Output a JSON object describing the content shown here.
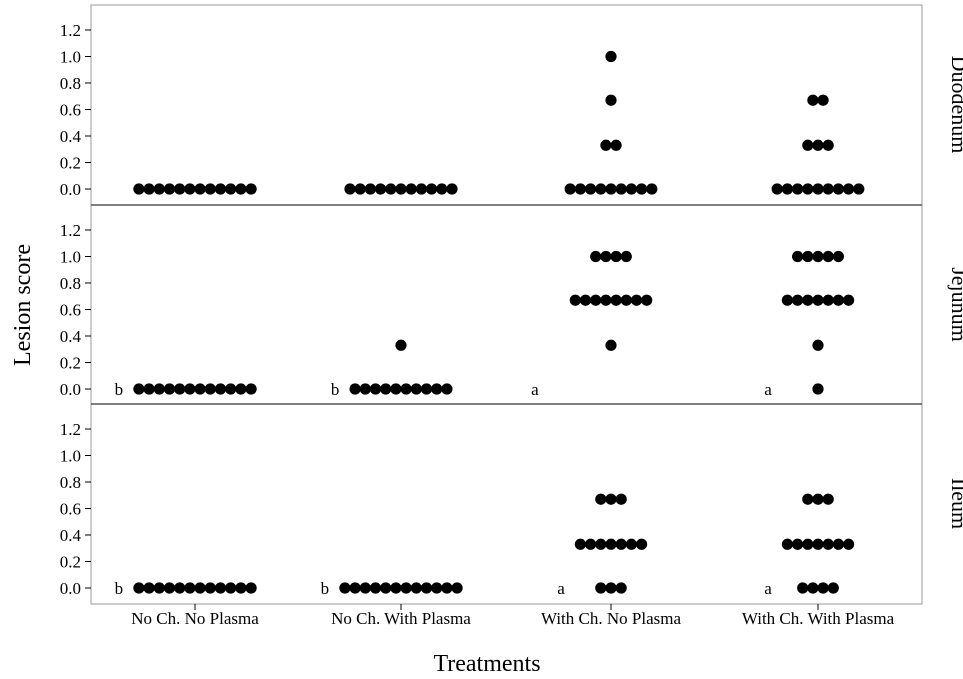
{
  "chart_data": {
    "type": "scatter",
    "subtype": "faceted-dot-plot",
    "xlabel": "Treatments",
    "ylabel": "Lesion score",
    "categories": [
      "No Ch. No Plasma",
      "No Ch. With Plasma",
      "With Ch. No Plasma",
      "With Ch. With Plasma"
    ],
    "ylim": [
      -0.1,
      1.35
    ],
    "yticks": [
      0.0,
      0.2,
      0.4,
      0.6,
      0.8,
      1.0,
      1.2
    ],
    "ytick_labels": [
      "0.0",
      "0.2",
      "0.4",
      "0.6",
      "0.8",
      "1.0",
      "1.2"
    ],
    "grid": false,
    "legend": "none",
    "marker_color": "#000000",
    "facets": [
      {
        "name": "Duodenum",
        "groups": [
          {
            "category": "No Ch. No Plasma",
            "letter": "",
            "counts": [
              {
                "y": 0.0,
                "n": 12
              }
            ]
          },
          {
            "category": "No Ch. With Plasma",
            "letter": "",
            "counts": [
              {
                "y": 0.0,
                "n": 11
              }
            ]
          },
          {
            "category": "With Ch. No Plasma",
            "letter": "",
            "counts": [
              {
                "y": 0.0,
                "n": 9
              },
              {
                "y": 0.33,
                "n": 2
              },
              {
                "y": 0.67,
                "n": 1
              },
              {
                "y": 1.0,
                "n": 1
              }
            ]
          },
          {
            "category": "With Ch. With Plasma",
            "letter": "",
            "counts": [
              {
                "y": 0.0,
                "n": 9
              },
              {
                "y": 0.33,
                "n": 3
              },
              {
                "y": 0.67,
                "n": 2
              }
            ]
          }
        ]
      },
      {
        "name": "Jejunum",
        "groups": [
          {
            "category": "No Ch. No Plasma",
            "letter": "b",
            "counts": [
              {
                "y": 0.0,
                "n": 12
              }
            ]
          },
          {
            "category": "No Ch. With Plasma",
            "letter": "b",
            "counts": [
              {
                "y": 0.0,
                "n": 10
              },
              {
                "y": 0.33,
                "n": 1
              }
            ]
          },
          {
            "category": "With Ch. No Plasma",
            "letter": "a",
            "counts": [
              {
                "y": 0.33,
                "n": 1
              },
              {
                "y": 0.67,
                "n": 8
              },
              {
                "y": 1.0,
                "n": 4
              }
            ]
          },
          {
            "category": "With Ch. With Plasma",
            "letter": "a",
            "counts": [
              {
                "y": 0.0,
                "n": 1
              },
              {
                "y": 0.33,
                "n": 1
              },
              {
                "y": 0.67,
                "n": 7
              },
              {
                "y": 1.0,
                "n": 5
              }
            ]
          }
        ]
      },
      {
        "name": "Ileum",
        "groups": [
          {
            "category": "No Ch. No Plasma",
            "letter": "b",
            "counts": [
              {
                "y": 0.0,
                "n": 12
              }
            ]
          },
          {
            "category": "No Ch. With Plasma",
            "letter": "b",
            "counts": [
              {
                "y": 0.0,
                "n": 12
              }
            ]
          },
          {
            "category": "With Ch. No Plasma",
            "letter": "a",
            "counts": [
              {
                "y": 0.0,
                "n": 3
              },
              {
                "y": 0.33,
                "n": 7
              },
              {
                "y": 0.67,
                "n": 3
              }
            ]
          },
          {
            "category": "With Ch. With Plasma",
            "letter": "a",
            "counts": [
              {
                "y": 0.0,
                "n": 4
              },
              {
                "y": 0.33,
                "n": 7
              },
              {
                "y": 0.67,
                "n": 3
              }
            ]
          }
        ]
      }
    ]
  }
}
